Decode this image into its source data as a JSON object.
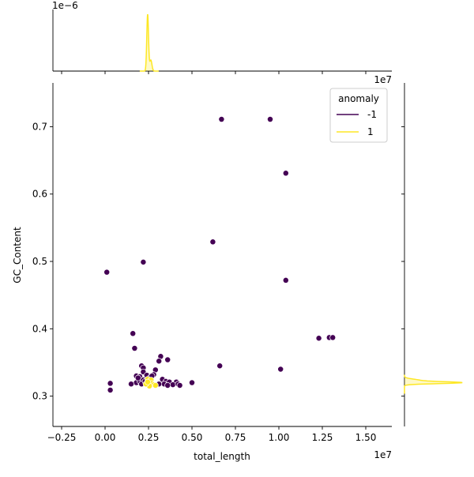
{
  "chart_data": {
    "type": "scatter",
    "title": "",
    "xlabel": "total_length",
    "ylabel": "GC_Content",
    "x_offset_text": "1e7",
    "top_marginal_offset_text": "1e−6",
    "right_marginal_offset_text": "1e7",
    "xlim": [
      -3.0,
      16.5
    ],
    "ylim": [
      0.255,
      0.765
    ],
    "x_ticks": [
      "−0.25",
      "0.00",
      "0.25",
      "0.50",
      "0.75",
      "1.00",
      "1.25",
      "1.50"
    ],
    "y_ticks": [
      "0.3",
      "0.4",
      "0.5",
      "0.6",
      "0.7"
    ],
    "grid": false,
    "legend": {
      "title": "anomaly",
      "placement": "top-right",
      "entries": [
        {
          "label": "-1",
          "color": "#440154"
        },
        {
          "label": "1",
          "color": "#fde725"
        }
      ]
    },
    "series": [
      {
        "name": "-1",
        "color": "#440154",
        "points": [
          [
            6.7,
            0.711
          ],
          [
            9.5,
            0.711
          ],
          [
            10.4,
            0.631
          ],
          [
            6.2,
            0.529
          ],
          [
            2.2,
            0.499
          ],
          [
            0.1,
            0.484
          ],
          [
            10.4,
            0.472
          ],
          [
            1.6,
            0.393
          ],
          [
            1.7,
            0.371
          ],
          [
            12.3,
            0.386
          ],
          [
            12.9,
            0.387
          ],
          [
            13.1,
            0.387
          ],
          [
            3.2,
            0.359
          ],
          [
            3.1,
            0.352
          ],
          [
            3.6,
            0.354
          ],
          [
            6.6,
            0.345
          ],
          [
            10.1,
            0.34
          ],
          [
            2.1,
            0.345
          ],
          [
            2.2,
            0.342
          ],
          [
            2.2,
            0.336
          ],
          [
            2.9,
            0.339
          ],
          [
            2.8,
            0.332
          ],
          [
            1.8,
            0.33
          ],
          [
            2.0,
            0.329
          ],
          [
            2.4,
            0.331
          ],
          [
            2.6,
            0.328
          ],
          [
            2.7,
            0.33
          ],
          [
            1.8,
            0.32
          ],
          [
            2.0,
            0.322
          ],
          [
            2.2,
            0.324
          ],
          [
            3.3,
            0.325
          ],
          [
            3.5,
            0.322
          ],
          [
            3.7,
            0.321
          ],
          [
            4.1,
            0.321
          ],
          [
            3.4,
            0.318
          ],
          [
            3.9,
            0.317
          ],
          [
            4.2,
            0.318
          ],
          [
            4.3,
            0.316
          ],
          [
            5.0,
            0.32
          ],
          [
            3.1,
            0.318
          ],
          [
            3.6,
            0.316
          ],
          [
            0.3,
            0.319
          ],
          [
            0.3,
            0.309
          ],
          [
            1.5,
            0.318
          ],
          [
            2.1,
            0.318
          ],
          [
            1.9,
            0.327
          ],
          [
            2.3,
            0.322
          ]
        ]
      },
      {
        "name": "1",
        "color": "#fde725",
        "points": [
          [
            2.45,
            0.325
          ],
          [
            2.5,
            0.32
          ],
          [
            2.55,
            0.322
          ],
          [
            2.6,
            0.318
          ],
          [
            2.65,
            0.324
          ],
          [
            2.5,
            0.316
          ],
          [
            2.7,
            0.319
          ],
          [
            2.8,
            0.317
          ],
          [
            2.55,
            0.315
          ],
          [
            2.35,
            0.318
          ],
          [
            2.9,
            0.316
          ],
          [
            2.45,
            0.321
          ]
        ]
      }
    ]
  }
}
